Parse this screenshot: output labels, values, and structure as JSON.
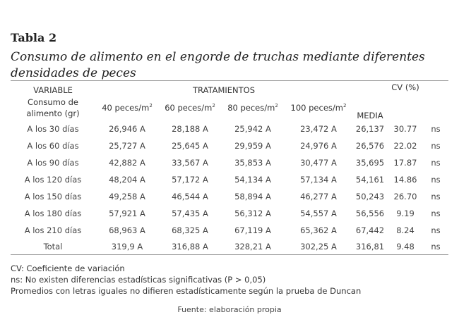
{
  "title": "Tabla 2",
  "subtitle": "Consumo de alimento en el engorde de truchas mediante diferentes densidades de peces",
  "table": {
    "header_variable": "VARIABLE",
    "header_variable_sub": "Consumo de alimento (gr)",
    "header_treatments": "TRATAMIENTOS",
    "header_media": "MEDIA",
    "header_cv": "CV (%)",
    "treatments": [
      {
        "label": "40 peces/m",
        "sup": "2"
      },
      {
        "label": "60 peces/m",
        "sup": "2"
      },
      {
        "label": "80 peces/m",
        "sup": "2"
      },
      {
        "label": "100 peces/m",
        "sup": "2"
      }
    ],
    "rows": [
      {
        "label": "A los 30 días",
        "values": [
          "26,946 A",
          "28,188 A",
          "25,942 A",
          "23,472 A"
        ],
        "media": "26,137",
        "cv": "30.77",
        "sig": "ns"
      },
      {
        "label": "A los 60 días",
        "values": [
          "25,727 A",
          "25,645 A",
          "29,959 A",
          "24,976 A"
        ],
        "media": "26,576",
        "cv": "22.02",
        "sig": "ns"
      },
      {
        "label": "A los 90 días",
        "values": [
          "42,882 A",
          "33,567 A",
          "35,853 A",
          "30,477 A"
        ],
        "media": "35,695",
        "cv": "17.87",
        "sig": "ns"
      },
      {
        "label": "A los 120 días",
        "values": [
          "48,204 A",
          "57,172 A",
          "54,134 A",
          "57,134 A"
        ],
        "media": "54,161",
        "cv": "14.86",
        "sig": "ns"
      },
      {
        "label": "A los 150 días",
        "values": [
          "49,258 A",
          "46,544 A",
          "58,894 A",
          "46,277 A"
        ],
        "media": "50,243",
        "cv": "26.70",
        "sig": "ns"
      },
      {
        "label": "A los 180 días",
        "values": [
          "57,921 A",
          "57,435 A",
          "56,312 A",
          "54,557 A"
        ],
        "media": "56,556",
        "cv": "9.19",
        "sig": "ns"
      },
      {
        "label": "A los 210 días",
        "values": [
          "68,963 A",
          "68,325 A",
          "67,119 A",
          "65,362 A"
        ],
        "media": "67,442",
        "cv": "8.24",
        "sig": "ns"
      },
      {
        "label": "Total",
        "values": [
          "319,9 A",
          "316,88 A",
          "328,21 A",
          "302,25 A"
        ],
        "media": "316,81",
        "cv": "9.48",
        "sig": "ns"
      }
    ]
  },
  "notes": [
    "CV: Coeficiente de variación",
    "ns: No existen diferencias estadísticas significativas (P > 0,05)",
    "Promedios con letras iguales no difieren estadísticamente según la prueba de Duncan"
  ],
  "source": "Fuente: elaboración propia"
}
